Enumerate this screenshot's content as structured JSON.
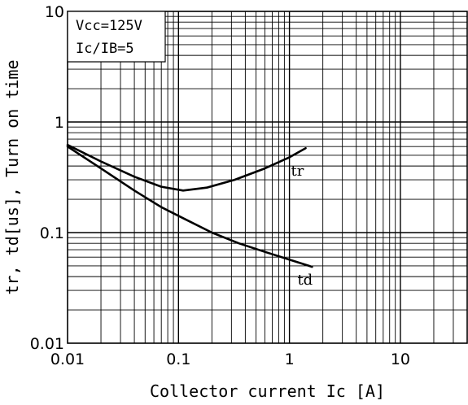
{
  "chart_data": {
    "type": "line",
    "x_scale": "log",
    "y_scale": "log",
    "xlim": [
      0.01,
      40
    ],
    "ylim": [
      0.01,
      10
    ],
    "grid": true,
    "xlabel": "Collector current Ic [A]",
    "ylabel": "tr, td[us], Turn on time",
    "x_ticks": [
      {
        "value": 0.01,
        "label": "0.01"
      },
      {
        "value": 0.1,
        "label": "0.1"
      },
      {
        "value": 1,
        "label": "1"
      },
      {
        "value": 10,
        "label": "10"
      }
    ],
    "y_ticks": [
      {
        "value": 10,
        "label": "10"
      },
      {
        "value": 1,
        "label": "1"
      },
      {
        "value": 0.1,
        "label": "0.1"
      },
      {
        "value": 0.01,
        "label": "0.01"
      }
    ],
    "conditions": [
      "Vcc=125V",
      "Ic/IB=5"
    ],
    "series": [
      {
        "name": "tr",
        "x": [
          0.01,
          0.02,
          0.04,
          0.07,
          0.11,
          0.18,
          0.32,
          0.6,
          1.0,
          1.4
        ],
        "y": [
          0.62,
          0.44,
          0.32,
          0.26,
          0.24,
          0.255,
          0.3,
          0.38,
          0.48,
          0.58
        ]
      },
      {
        "name": "td",
        "x": [
          0.01,
          0.02,
          0.04,
          0.07,
          0.11,
          0.2,
          0.35,
          0.6,
          1.0,
          1.6
        ],
        "y": [
          0.6,
          0.38,
          0.24,
          0.17,
          0.135,
          0.1,
          0.08,
          0.067,
          0.057,
          0.049
        ]
      }
    ]
  }
}
